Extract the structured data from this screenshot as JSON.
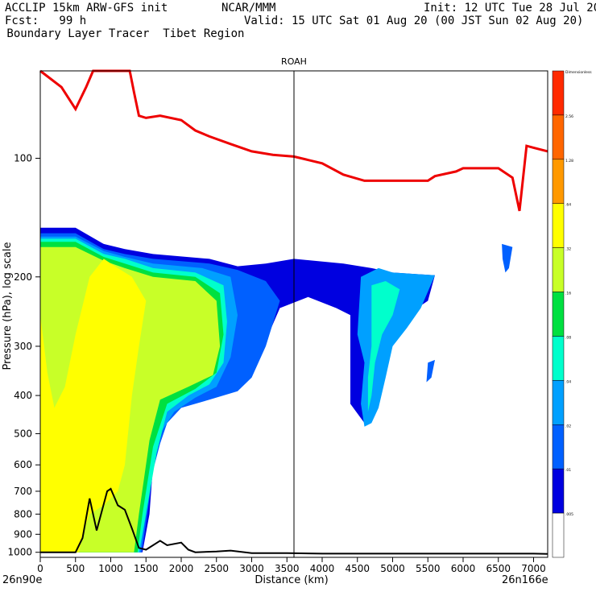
{
  "header": {
    "line1_left": "ACCLIP 15km ARW-GFS init",
    "line1_mid": "NCAR/MMM",
    "line1_right": "Init: 12 UTC Tue 28 Jul 20",
    "line2_left": "Fcst:   99 h",
    "line2_right": "Valid: 15 UTC Sat 01 Aug 20 (00 JST Sun 02 Aug 20)",
    "line3_left": " Boundary Layer Tracer  Tibet Region"
  },
  "chart_data": {
    "type": "heatmap",
    "title": "",
    "xlabel": "Distance (km)",
    "ylabel": "Pressure (hPa), log scale",
    "x_ticks": [
      0,
      500,
      1000,
      1500,
      2000,
      2500,
      3000,
      3500,
      4000,
      4500,
      5000,
      5500,
      6000,
      6500,
      7000
    ],
    "y_ticks": [
      100,
      200,
      300,
      400,
      500,
      600,
      700,
      800,
      900,
      1000
    ],
    "xlim": [
      0,
      7200
    ],
    "ylim": [
      1030,
      60
    ],
    "y_scale": "log",
    "x_end_left": "26n90e",
    "x_end_right": "26n166e",
    "vertical_marker": {
      "label": "ROAH",
      "x": 3600
    },
    "colorbar": {
      "levels": [
        "Dimensionless",
        "2.56",
        "1.28",
        ".64",
        ".32",
        ".16",
        ".08",
        ".04",
        ".02",
        ".01",
        ".005"
      ],
      "colors": [
        "#ff2a00",
        "#ff6600",
        "#ff9900",
        "#ffff00",
        "#c8ff28",
        "#00e040",
        "#00ffcc",
        "#00a0ff",
        "#0060ff",
        "#0000e0",
        "#ffffff"
      ]
    },
    "tropopause_line": {
      "name": "",
      "color": "#ee0000",
      "points": [
        [
          0,
          60
        ],
        [
          300,
          66
        ],
        [
          500,
          75
        ],
        [
          650,
          66
        ],
        [
          750,
          60
        ],
        [
          1270,
          60
        ],
        [
          1330,
          68
        ],
        [
          1400,
          78
        ],
        [
          1500,
          79
        ],
        [
          1700,
          78
        ],
        [
          2000,
          80
        ],
        [
          2200,
          85
        ],
        [
          2400,
          88
        ],
        [
          2700,
          92
        ],
        [
          3000,
          96
        ],
        [
          3300,
          98
        ],
        [
          3600,
          99
        ],
        [
          4000,
          103
        ],
        [
          4300,
          110
        ],
        [
          4600,
          114
        ],
        [
          5000,
          114
        ],
        [
          5500,
          114
        ],
        [
          5600,
          111
        ],
        [
          5900,
          108
        ],
        [
          6000,
          106
        ],
        [
          6300,
          106
        ],
        [
          6500,
          106
        ],
        [
          6700,
          112
        ],
        [
          6800,
          136
        ],
        [
          6900,
          93
        ],
        [
          7000,
          94
        ],
        [
          7200,
          96
        ]
      ]
    },
    "terrain_line": {
      "name": "",
      "color": "#000000",
      "points": [
        [
          0,
          1000
        ],
        [
          500,
          1000
        ],
        [
          600,
          920
        ],
        [
          700,
          730
        ],
        [
          800,
          880
        ],
        [
          950,
          700
        ],
        [
          1000,
          690
        ],
        [
          1100,
          760
        ],
        [
          1200,
          780
        ],
        [
          1300,
          870
        ],
        [
          1400,
          975
        ],
        [
          1500,
          985
        ],
        [
          1700,
          935
        ],
        [
          1800,
          960
        ],
        [
          2000,
          945
        ],
        [
          2100,
          985
        ],
        [
          2200,
          1000
        ],
        [
          2500,
          995
        ],
        [
          2700,
          990
        ],
        [
          3000,
          1005
        ],
        [
          3500,
          1005
        ],
        [
          4000,
          1008
        ],
        [
          7000,
          1008
        ],
        [
          7200,
          1010
        ]
      ]
    },
    "tracer_regions": [
      {
        "level": ".01",
        "points": [
          [
            0,
            150
          ],
          [
            500,
            150
          ],
          [
            900,
            165
          ],
          [
            1200,
            170
          ],
          [
            1600,
            175
          ],
          [
            2400,
            180
          ],
          [
            2800,
            188
          ],
          [
            3200,
            185
          ],
          [
            3600,
            180
          ],
          [
            4300,
            185
          ],
          [
            4700,
            190
          ],
          [
            5000,
            195
          ],
          [
            5600,
            198
          ],
          [
            5500,
            230
          ],
          [
            5200,
            250
          ],
          [
            4900,
            300
          ],
          [
            4800,
            420
          ],
          [
            4600,
            470
          ],
          [
            4400,
            420
          ],
          [
            4400,
            250
          ],
          [
            4200,
            240
          ],
          [
            3800,
            225
          ],
          [
            3400,
            240
          ],
          [
            3200,
            290
          ],
          [
            3000,
            350
          ],
          [
            2800,
            380
          ],
          [
            2400,
            400
          ],
          [
            2000,
            420
          ],
          [
            1800,
            460
          ],
          [
            1700,
            520
          ],
          [
            1600,
            600
          ],
          [
            1550,
            800
          ],
          [
            1450,
            1000
          ],
          [
            0,
            1000
          ]
        ]
      },
      {
        "level": ".02",
        "points": [
          [
            0,
            155
          ],
          [
            500,
            155
          ],
          [
            900,
            170
          ],
          [
            1200,
            175
          ],
          [
            1600,
            180
          ],
          [
            2400,
            185
          ],
          [
            2800,
            192
          ],
          [
            3200,
            205
          ],
          [
            3400,
            230
          ],
          [
            3200,
            300
          ],
          [
            3000,
            360
          ],
          [
            2800,
            390
          ],
          [
            2400,
            410
          ],
          [
            2000,
            430
          ],
          [
            1800,
            470
          ],
          [
            1700,
            530
          ],
          [
            1600,
            620
          ],
          [
            1520,
            800
          ],
          [
            1440,
            1000
          ],
          [
            0,
            1000
          ]
        ]
      },
      {
        "level": ".04",
        "points": [
          [
            0,
            158
          ],
          [
            500,
            158
          ],
          [
            900,
            172
          ],
          [
            1200,
            178
          ],
          [
            1600,
            185
          ],
          [
            2300,
            190
          ],
          [
            2700,
            200
          ],
          [
            2800,
            250
          ],
          [
            2700,
            320
          ],
          [
            2500,
            380
          ],
          [
            2200,
            405
          ],
          [
            1900,
            440
          ],
          [
            1700,
            500
          ],
          [
            1600,
            620
          ],
          [
            1500,
            800
          ],
          [
            1420,
            1000
          ],
          [
            0,
            1000
          ]
        ]
      },
      {
        "level": ".08",
        "points": [
          [
            0,
            160
          ],
          [
            500,
            160
          ],
          [
            900,
            175
          ],
          [
            1200,
            180
          ],
          [
            1600,
            190
          ],
          [
            2200,
            195
          ],
          [
            2600,
            210
          ],
          [
            2650,
            260
          ],
          [
            2600,
            330
          ],
          [
            2400,
            375
          ],
          [
            2100,
            400
          ],
          [
            1800,
            440
          ],
          [
            1650,
            560
          ],
          [
            1500,
            800
          ],
          [
            1400,
            1000
          ],
          [
            0,
            1000
          ]
        ]
      },
      {
        "level": ".16",
        "points": [
          [
            0,
            163
          ],
          [
            500,
            163
          ],
          [
            900,
            178
          ],
          [
            1200,
            185
          ],
          [
            1600,
            195
          ],
          [
            2200,
            200
          ],
          [
            2550,
            220
          ],
          [
            2600,
            280
          ],
          [
            2500,
            350
          ],
          [
            2200,
            385
          ],
          [
            1800,
            420
          ],
          [
            1600,
            540
          ],
          [
            1450,
            800
          ],
          [
            1380,
            1000
          ],
          [
            0,
            1000
          ]
        ]
      },
      {
        "level": ".32",
        "points": [
          [
            0,
            168
          ],
          [
            500,
            168
          ],
          [
            900,
            182
          ],
          [
            1200,
            190
          ],
          [
            1600,
            200
          ],
          [
            2200,
            205
          ],
          [
            2500,
            230
          ],
          [
            2550,
            300
          ],
          [
            2450,
            355
          ],
          [
            2100,
            380
          ],
          [
            1700,
            410
          ],
          [
            1550,
            520
          ],
          [
            1400,
            800
          ],
          [
            1330,
            1000
          ],
          [
            0,
            1000
          ]
        ]
      },
      {
        "level": ".64",
        "points": [
          [
            0,
            250
          ],
          [
            100,
            350
          ],
          [
            200,
            430
          ],
          [
            350,
            380
          ],
          [
            500,
            280
          ],
          [
            700,
            200
          ],
          [
            900,
            180
          ],
          [
            1100,
            190
          ],
          [
            1300,
            200
          ],
          [
            1500,
            230
          ],
          [
            1400,
            300
          ],
          [
            1300,
            400
          ],
          [
            1200,
            600
          ],
          [
            1100,
            700
          ],
          [
            900,
            760
          ],
          [
            700,
            800
          ],
          [
            600,
            900
          ],
          [
            550,
            1000
          ],
          [
            0,
            1000
          ]
        ]
      },
      {
        "level": ".04",
        "points": [
          [
            4550,
            200
          ],
          [
            4800,
            190
          ],
          [
            5000,
            195
          ],
          [
            5600,
            198
          ],
          [
            5400,
            240
          ],
          [
            5200,
            270
          ],
          [
            5000,
            300
          ],
          [
            4900,
            360
          ],
          [
            4800,
            430
          ],
          [
            4700,
            470
          ],
          [
            4600,
            480
          ],
          [
            4550,
            420
          ],
          [
            4600,
            330
          ],
          [
            4500,
            280
          ]
        ]
      },
      {
        "level": ".08",
        "points": [
          [
            4700,
            210
          ],
          [
            4900,
            205
          ],
          [
            5100,
            215
          ],
          [
            5000,
            250
          ],
          [
            4850,
            280
          ],
          [
            4750,
            330
          ],
          [
            4700,
            400
          ],
          [
            4650,
            440
          ],
          [
            4650,
            360
          ],
          [
            4700,
            300
          ]
        ]
      },
      {
        "level": ".02",
        "points": [
          [
            6550,
            165
          ],
          [
            6700,
            168
          ],
          [
            6650,
            190
          ],
          [
            6600,
            195
          ],
          [
            6560,
            180
          ]
        ]
      },
      {
        "level": ".02",
        "points": [
          [
            5500,
            330
          ],
          [
            5600,
            325
          ],
          [
            5550,
            360
          ],
          [
            5480,
            370
          ]
        ]
      }
    ]
  }
}
